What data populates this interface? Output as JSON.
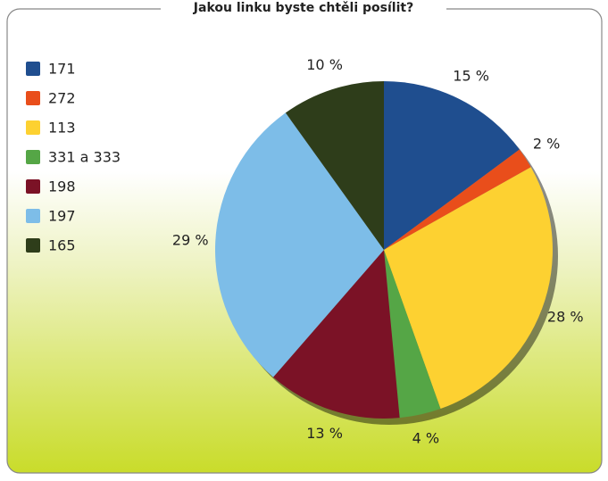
{
  "chart_data": {
    "type": "pie",
    "title": "Jakou linku byste chtěli posílit?",
    "categories": [
      "171",
      "272",
      "113",
      "331 a 333",
      "198",
      "197",
      "165"
    ],
    "values": [
      15,
      2,
      28,
      4,
      13,
      29,
      10
    ],
    "value_labels": [
      "15 %",
      "2 %",
      "28 %",
      "4 %",
      "13 %",
      "29 %",
      "10 %"
    ],
    "colors": [
      "#1f4e8f",
      "#e94e1b",
      "#fdd131",
      "#55a646",
      "#7b1226",
      "#7dbde8",
      "#2e3d1a"
    ],
    "legend": "left"
  }
}
